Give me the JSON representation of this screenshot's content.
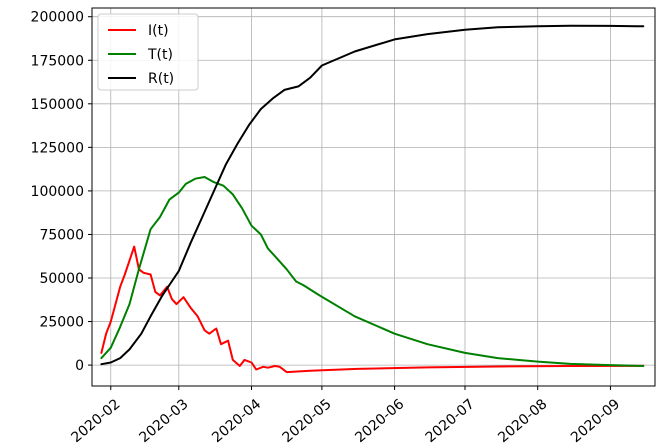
{
  "chart_data": {
    "type": "line",
    "title": "",
    "xlabel": "",
    "ylabel": "",
    "grid": true,
    "legend_placement": "top-left",
    "xlim": [
      "2020-01-24",
      "2020-09-20"
    ],
    "ylim": [
      -12000,
      205000
    ],
    "x_ticks": [
      "2020-02",
      "2020-03",
      "2020-04",
      "2020-05",
      "2020-06",
      "2020-07",
      "2020-08",
      "2020-09"
    ],
    "y_ticks": [
      0,
      25000,
      50000,
      75000,
      100000,
      125000,
      150000,
      175000,
      200000
    ],
    "y_tick_labels": [
      "0",
      "25000",
      "50000",
      "75000",
      "100000",
      "125000",
      "150000",
      "175000",
      "200000"
    ],
    "series": [
      {
        "name": "I(t)",
        "color": "#ff0000",
        "points": [
          [
            "2020-01-28",
            7000
          ],
          [
            "2020-01-30",
            18000
          ],
          [
            "2020-02-01",
            25000
          ],
          [
            "2020-02-03",
            35000
          ],
          [
            "2020-02-05",
            45000
          ],
          [
            "2020-02-07",
            52000
          ],
          [
            "2020-02-09",
            60000
          ],
          [
            "2020-02-11",
            68000
          ],
          [
            "2020-02-13",
            55000
          ],
          [
            "2020-02-15",
            53000
          ],
          [
            "2020-02-18",
            52000
          ],
          [
            "2020-02-20",
            42000
          ],
          [
            "2020-02-22",
            40000
          ],
          [
            "2020-02-25",
            45000
          ],
          [
            "2020-02-27",
            38000
          ],
          [
            "2020-02-29",
            35000
          ],
          [
            "2020-03-03",
            39000
          ],
          [
            "2020-03-06",
            33000
          ],
          [
            "2020-03-09",
            28000
          ],
          [
            "2020-03-12",
            20000
          ],
          [
            "2020-03-14",
            18000
          ],
          [
            "2020-03-17",
            21000
          ],
          [
            "2020-03-19",
            12000
          ],
          [
            "2020-03-22",
            14000
          ],
          [
            "2020-03-24",
            3000
          ],
          [
            "2020-03-27",
            -500
          ],
          [
            "2020-03-29",
            3000
          ],
          [
            "2020-04-01",
            1500
          ],
          [
            "2020-04-03",
            -2500
          ],
          [
            "2020-04-06",
            -1000
          ],
          [
            "2020-04-08",
            -1500
          ],
          [
            "2020-04-11",
            -500
          ],
          [
            "2020-04-13",
            -1000
          ],
          [
            "2020-04-16",
            -4000
          ],
          [
            "2020-04-26",
            -3200
          ],
          [
            "2020-05-16",
            -2200
          ],
          [
            "2020-06-15",
            -1300
          ],
          [
            "2020-07-15",
            -800
          ],
          [
            "2020-08-15",
            -500
          ],
          [
            "2020-09-15",
            -400
          ]
        ]
      },
      {
        "name": "T(t)",
        "color": "#008000",
        "points": [
          [
            "2020-01-28",
            4000
          ],
          [
            "2020-02-01",
            10000
          ],
          [
            "2020-02-05",
            22000
          ],
          [
            "2020-02-09",
            35000
          ],
          [
            "2020-02-13",
            55000
          ],
          [
            "2020-02-18",
            78000
          ],
          [
            "2020-02-22",
            85000
          ],
          [
            "2020-02-26",
            95000
          ],
          [
            "2020-03-01",
            99000
          ],
          [
            "2020-03-04",
            104000
          ],
          [
            "2020-03-08",
            107000
          ],
          [
            "2020-03-12",
            108000
          ],
          [
            "2020-03-16",
            105000
          ],
          [
            "2020-03-20",
            103000
          ],
          [
            "2020-03-24",
            98000
          ],
          [
            "2020-03-28",
            90000
          ],
          [
            "2020-04-01",
            80000
          ],
          [
            "2020-04-05",
            75000
          ],
          [
            "2020-04-08",
            67000
          ],
          [
            "2020-04-12",
            61000
          ],
          [
            "2020-04-16",
            55000
          ],
          [
            "2020-04-20",
            48000
          ],
          [
            "2020-04-23",
            46000
          ],
          [
            "2020-04-30",
            40000
          ],
          [
            "2020-05-15",
            28000
          ],
          [
            "2020-06-01",
            18000
          ],
          [
            "2020-06-15",
            12000
          ],
          [
            "2020-07-01",
            7000
          ],
          [
            "2020-07-15",
            4000
          ],
          [
            "2020-08-01",
            2000
          ],
          [
            "2020-08-15",
            700
          ],
          [
            "2020-09-01",
            0
          ],
          [
            "2020-09-15",
            -500
          ]
        ]
      },
      {
        "name": "R(t)",
        "color": "#000000",
        "points": [
          [
            "2020-01-28",
            500
          ],
          [
            "2020-02-01",
            1500
          ],
          [
            "2020-02-05",
            4000
          ],
          [
            "2020-02-09",
            9000
          ],
          [
            "2020-02-14",
            18000
          ],
          [
            "2020-02-18",
            28000
          ],
          [
            "2020-02-23",
            40000
          ],
          [
            "2020-03-01",
            54000
          ],
          [
            "2020-03-06",
            70000
          ],
          [
            "2020-03-11",
            85000
          ],
          [
            "2020-03-16",
            100000
          ],
          [
            "2020-03-21",
            115000
          ],
          [
            "2020-03-26",
            127000
          ],
          [
            "2020-03-31",
            138000
          ],
          [
            "2020-04-05",
            147000
          ],
          [
            "2020-04-10",
            153000
          ],
          [
            "2020-04-15",
            158000
          ],
          [
            "2020-04-21",
            160000
          ],
          [
            "2020-04-26",
            165000
          ],
          [
            "2020-05-01",
            172000
          ],
          [
            "2020-05-15",
            180000
          ],
          [
            "2020-06-01",
            187000
          ],
          [
            "2020-06-15",
            190000
          ],
          [
            "2020-07-01",
            192500
          ],
          [
            "2020-07-15",
            194000
          ],
          [
            "2020-08-01",
            194500
          ],
          [
            "2020-08-15",
            194800
          ],
          [
            "2020-09-01",
            194700
          ],
          [
            "2020-09-15",
            194500
          ]
        ]
      }
    ]
  }
}
